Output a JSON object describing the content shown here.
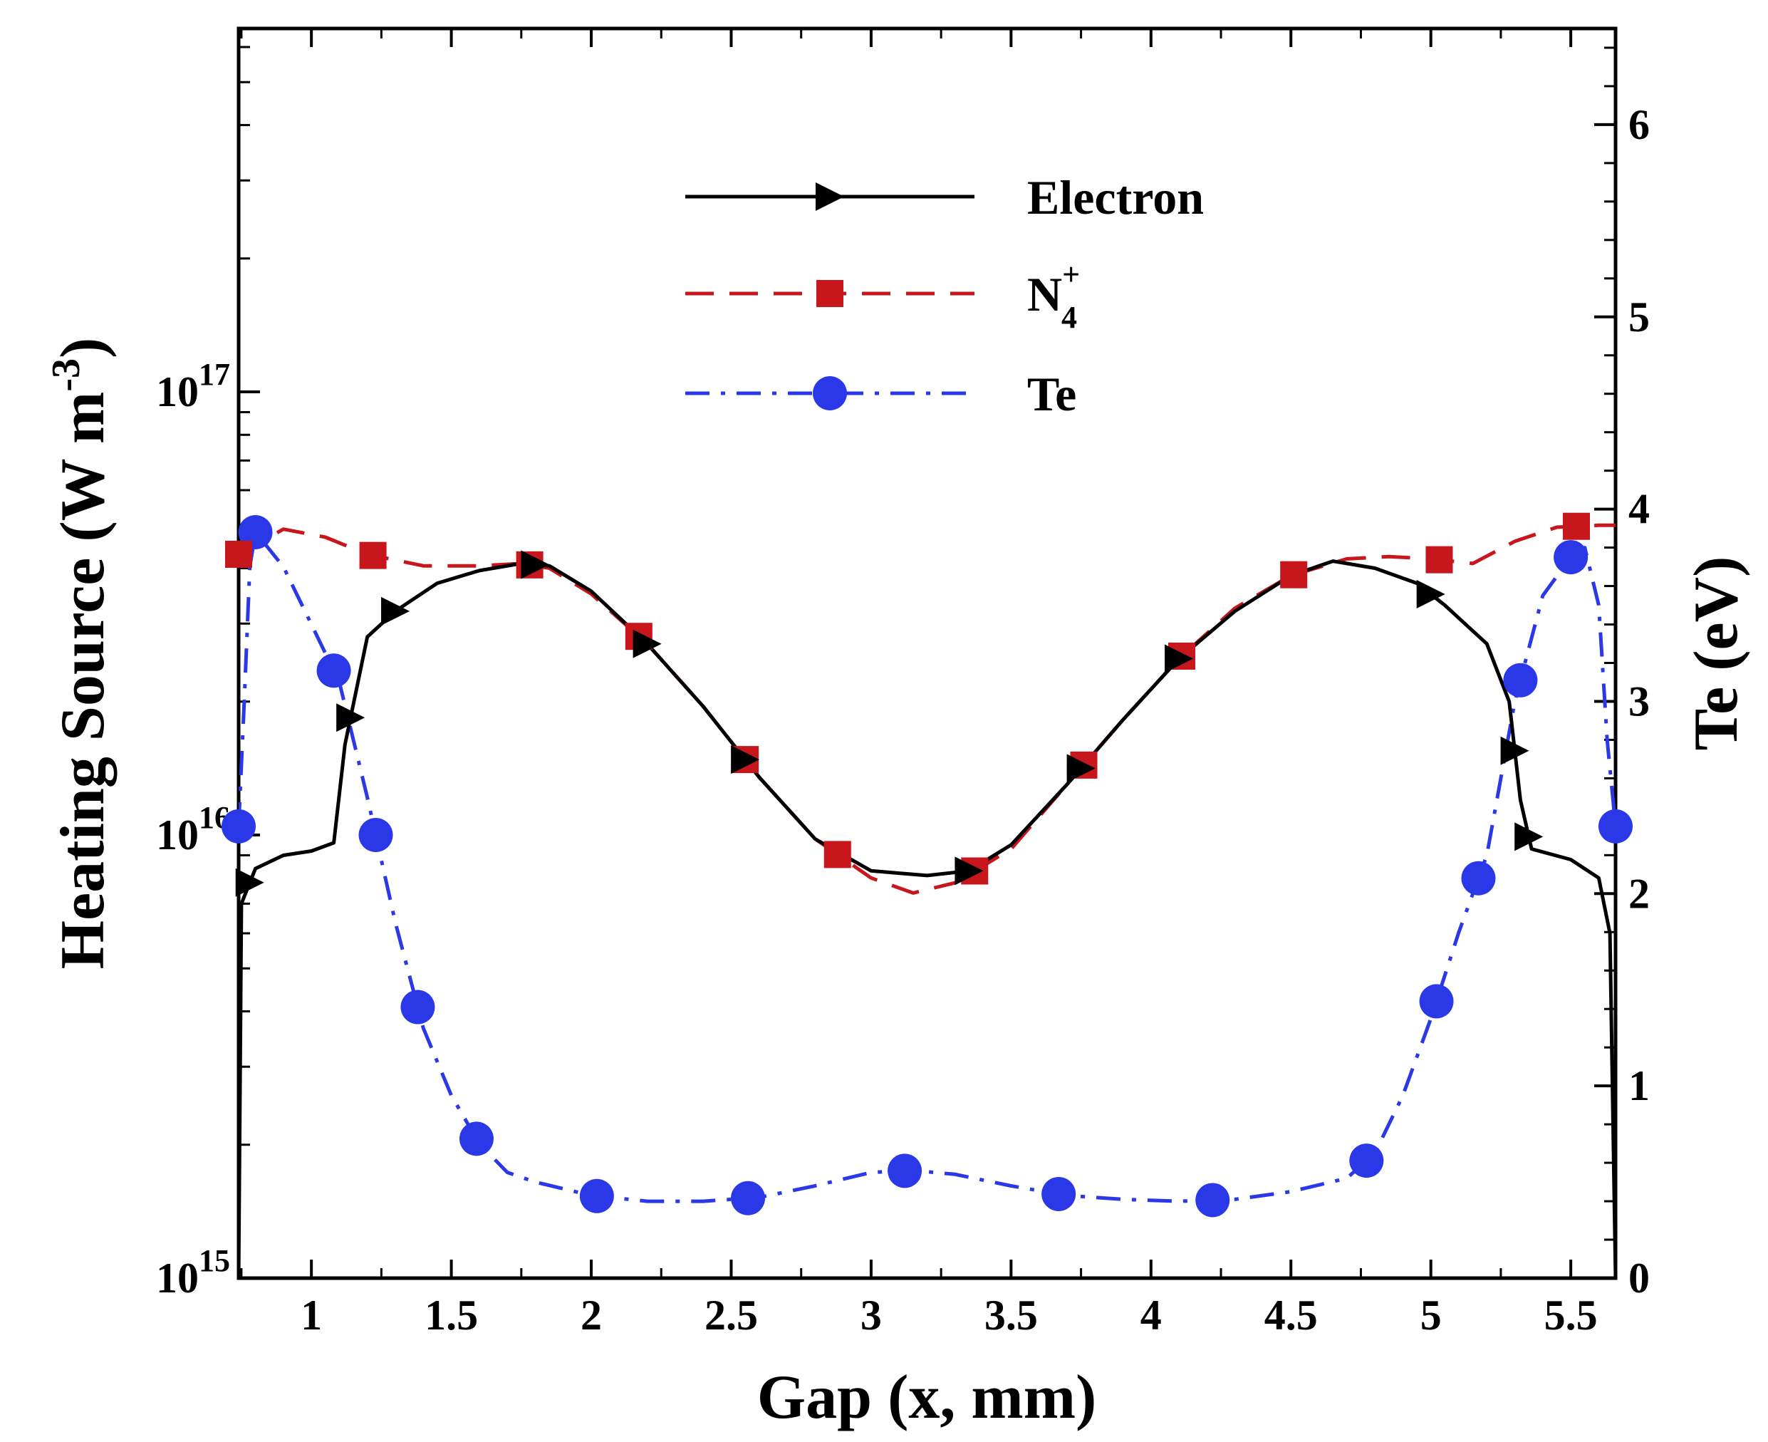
{
  "chart_data": {
    "type": "line",
    "xlabel": "Gap (x, mm)",
    "ylabel_left_main": "Heating Source (W m",
    "ylabel_left_sup": "-3",
    "ylabel_left_end": ")",
    "ylabel_right": "Te (eV)",
    "xlim": [
      0.74,
      5.66
    ],
    "ylim_left_log10": [
      15,
      17.82
    ],
    "ylim_right": [
      0,
      6.5
    ],
    "x_ticks": [
      {
        "value": 1,
        "label": "1"
      },
      {
        "value": 1.5,
        "label": "1.5"
      },
      {
        "value": 2,
        "label": "2"
      },
      {
        "value": 2.5,
        "label": "2.5"
      },
      {
        "value": 3,
        "label": "3"
      },
      {
        "value": 3.5,
        "label": "3.5"
      },
      {
        "value": 4,
        "label": "4"
      },
      {
        "value": 4.5,
        "label": "4.5"
      },
      {
        "value": 5,
        "label": "5"
      },
      {
        "value": 5.5,
        "label": "5.5"
      }
    ],
    "left_ticks": [
      {
        "log10": 15,
        "base": "10",
        "exp": "15"
      },
      {
        "log10": 16,
        "base": "10",
        "exp": "16"
      },
      {
        "log10": 17,
        "base": "10",
        "exp": "17"
      }
    ],
    "right_ticks": [
      {
        "value": 0,
        "label": "0"
      },
      {
        "value": 1,
        "label": "1"
      },
      {
        "value": 2,
        "label": "2"
      },
      {
        "value": 3,
        "label": "3"
      },
      {
        "value": 4,
        "label": "4"
      },
      {
        "value": 5,
        "label": "5"
      },
      {
        "value": 6,
        "label": "6"
      }
    ],
    "legend": {
      "placement": "top-center",
      "entries": [
        {
          "series": "electron",
          "label": "Electron",
          "sub": "",
          "sup": ""
        },
        {
          "series": "n4",
          "label": "N",
          "sub": "4",
          "sup": "+"
        },
        {
          "series": "te",
          "label": "Te",
          "sub": "",
          "sup": ""
        }
      ]
    },
    "series": [
      {
        "id": "electron",
        "name": "Electron",
        "axis": "left",
        "color": "#000000",
        "dash": "solid",
        "marker": "triangle-right",
        "x": [
          0.74,
          0.75,
          0.8,
          0.9,
          1.0,
          1.08,
          1.12,
          1.2,
          1.3,
          1.45,
          1.6,
          1.75,
          1.85,
          2.0,
          2.2,
          2.4,
          2.6,
          2.8,
          3.0,
          3.2,
          3.35,
          3.5,
          3.7,
          3.9,
          4.1,
          4.3,
          4.5,
          4.65,
          4.8,
          4.95,
          5.05,
          5.2,
          5.28,
          5.32,
          5.36,
          5.5,
          5.6,
          5.64,
          5.66
        ],
        "y": [
          1000000000000000.0,
          7000000000000000.0,
          8400000000000000.0,
          9000000000000000.0,
          9200000000000000.0,
          9600000000000000.0,
          1.6e+16,
          2.8e+16,
          3.2e+16,
          3.7e+16,
          3.95e+16,
          4.1e+16,
          4.05e+16,
          3.55e+16,
          2.7e+16,
          1.95e+16,
          1.35e+16,
          9800000000000000.0,
          8300000000000000.0,
          8100000000000000.0,
          8300000000000000.0,
          9500000000000000.0,
          1.3e+16,
          1.82e+16,
          2.5e+16,
          3.2e+16,
          3.85e+16,
          4.15e+16,
          4e+16,
          3.7e+16,
          3.3e+16,
          2.7e+16,
          2e+16,
          1.2e+16,
          9300000000000000.0,
          8800000000000000.0,
          8000000000000000.0,
          6000000000000000.0,
          1000000000000000.0
        ],
        "markers_x": [
          0.78,
          1.14,
          1.3,
          1.8,
          2.2,
          2.55,
          3.35,
          3.75,
          4.1,
          5.0,
          5.3,
          5.35
        ]
      },
      {
        "id": "n4",
        "name": "N4+",
        "axis": "left",
        "color": "#c8171c",
        "dash": "dashed",
        "marker": "square",
        "x": [
          0.74,
          0.9,
          1.05,
          1.2,
          1.4,
          1.6,
          1.75,
          1.85,
          2.0,
          2.2,
          2.4,
          2.6,
          2.8,
          3.0,
          3.15,
          3.3,
          3.5,
          3.7,
          3.9,
          4.1,
          4.3,
          4.5,
          4.7,
          4.85,
          5.0,
          5.15,
          5.3,
          5.45,
          5.6,
          5.66
        ],
        "y": [
          4.3e+16,
          4.9e+16,
          4.7e+16,
          4.3e+16,
          4.05e+16,
          4.05e+16,
          4.1e+16,
          4e+16,
          3.5e+16,
          2.7e+16,
          1.95e+16,
          1.35e+16,
          9800000000000000.0,
          8000000000000000.0,
          7400000000000000.0,
          7800000000000000.0,
          9300000000000000.0,
          1.3e+16,
          1.82e+16,
          2.5e+16,
          3.25e+16,
          3.85e+16,
          4.2e+16,
          4.25e+16,
          4.2e+16,
          4.1e+16,
          4.6e+16,
          4.95e+16,
          5e+16,
          5e+16
        ],
        "markers_x": [
          0.74,
          1.22,
          1.78,
          2.17,
          2.55,
          2.88,
          3.37,
          3.76,
          4.11,
          4.51,
          5.03,
          5.52
        ]
      },
      {
        "id": "te",
        "name": "Te",
        "axis": "right",
        "color": "#2a38e8",
        "dash": "dashdot",
        "marker": "circle",
        "x": [
          0.74,
          0.76,
          0.78,
          0.8,
          0.9,
          1.0,
          1.1,
          1.2,
          1.3,
          1.4,
          1.5,
          1.6,
          1.7,
          1.8,
          2.0,
          2.2,
          2.4,
          2.6,
          2.8,
          3.0,
          3.15,
          3.3,
          3.5,
          3.7,
          3.9,
          4.1,
          4.3,
          4.5,
          4.7,
          4.8,
          4.9,
          5.0,
          5.1,
          5.2,
          5.3,
          5.4,
          5.5,
          5.55,
          5.6,
          5.63,
          5.66
        ],
        "y": [
          2.35,
          3.0,
          3.7,
          3.88,
          3.7,
          3.4,
          3.1,
          2.5,
          1.85,
          1.3,
          0.95,
          0.7,
          0.55,
          0.5,
          0.43,
          0.4,
          0.4,
          0.42,
          0.48,
          0.55,
          0.56,
          0.54,
          0.48,
          0.43,
          0.41,
          0.4,
          0.41,
          0.45,
          0.52,
          0.65,
          0.95,
          1.35,
          1.8,
          2.2,
          3.0,
          3.55,
          3.75,
          3.8,
          3.5,
          2.8,
          2.35
        ],
        "markers_x": [
          0.74,
          0.8,
          1.08,
          1.23,
          1.38,
          1.59,
          2.02,
          2.56,
          3.12,
          3.67,
          4.22,
          4.77,
          5.02,
          5.17,
          5.32,
          5.5,
          5.66
        ]
      }
    ]
  }
}
